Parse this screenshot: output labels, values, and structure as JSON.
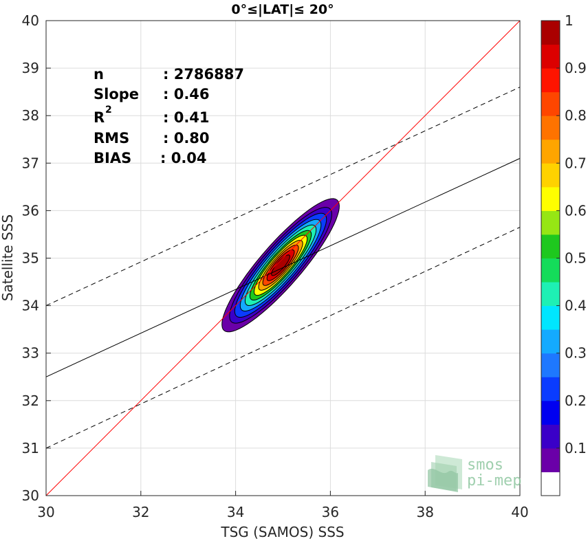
{
  "chart_data": {
    "type": "scatter",
    "subtype": "density-contour",
    "title": "0°≤|LAT|≤ 20°",
    "xlabel": "TSG (SAMOS) SSS",
    "ylabel": "Satellite SSS",
    "xlim": [
      30,
      40
    ],
    "ylim": [
      30,
      40
    ],
    "xticks": [
      "30",
      "32",
      "34",
      "36",
      "38",
      "40"
    ],
    "yticks": [
      "30",
      "31",
      "32",
      "33",
      "34",
      "35",
      "36",
      "37",
      "38",
      "39",
      "40"
    ],
    "grid": true,
    "stats": {
      "n": {
        "label": "n",
        "value": ": 2786887"
      },
      "slope": {
        "label": "Slope",
        "value": ": 0.46"
      },
      "r2": {
        "label": "R",
        "sup": "2",
        "value": ": 0.41"
      },
      "rms": {
        "label": "RMS",
        "value": ": 0.80"
      },
      "bias": {
        "label": "BIAS",
        "value": ": 0.04"
      }
    },
    "lines": {
      "identity": {
        "x": [
          30,
          40
        ],
        "y": [
          30,
          40
        ],
        "color": "#ff0000"
      },
      "regression": {
        "x": [
          30,
          40
        ],
        "y": [
          32.5,
          37.1
        ],
        "color": "#000000"
      },
      "upper_bound": {
        "x": [
          30,
          40
        ],
        "y": [
          34.0,
          38.6
        ],
        "style": "dashed"
      },
      "lower_bound": {
        "x": [
          30,
          40
        ],
        "y": [
          31.0,
          35.65
        ],
        "style": "dashed"
      }
    },
    "density": {
      "center": [
        34.95,
        34.85
      ],
      "major_axis_angle_deg": 49,
      "levels": [
        {
          "level": 0.05,
          "half_major": 1.82,
          "half_minor": 0.44
        },
        {
          "level": 0.1,
          "half_major": 1.58,
          "half_minor": 0.395
        },
        {
          "level": 0.2,
          "half_major": 1.42,
          "half_minor": 0.35
        },
        {
          "level": 0.3,
          "half_major": 1.25,
          "half_minor": 0.31
        },
        {
          "level": 0.4,
          "half_major": 1.1,
          "half_minor": 0.27
        },
        {
          "level": 0.5,
          "half_major": 0.95,
          "half_minor": 0.235
        },
        {
          "level": 0.6,
          "half_major": 0.82,
          "half_minor": 0.205
        },
        {
          "level": 0.7,
          "half_major": 0.68,
          "half_minor": 0.175
        },
        {
          "level": 0.8,
          "half_major": 0.55,
          "half_minor": 0.145
        },
        {
          "level": 0.9,
          "half_major": 0.42,
          "half_minor": 0.115
        }
      ]
    },
    "colorbar": {
      "ticks": [
        "0.1",
        "0.2",
        "0.3",
        "0.4",
        "0.5",
        "0.6",
        "0.7",
        "0.8",
        "0.9",
        "1"
      ],
      "tick_values": [
        0.1,
        0.2,
        0.3,
        0.4,
        0.5,
        0.6,
        0.7,
        0.8,
        0.9,
        1.0
      ],
      "bins": [
        {
          "from": 0.0,
          "to": 0.05,
          "color": "#ffffff"
        },
        {
          "from": 0.05,
          "to": 0.1,
          "color": "#6a00a8"
        },
        {
          "from": 0.1,
          "to": 0.15,
          "color": "#3a00c8"
        },
        {
          "from": 0.15,
          "to": 0.2,
          "color": "#0000f0"
        },
        {
          "from": 0.2,
          "to": 0.25,
          "color": "#0a3cff"
        },
        {
          "from": 0.25,
          "to": 0.3,
          "color": "#1e78ff"
        },
        {
          "from": 0.3,
          "to": 0.35,
          "color": "#14aaff"
        },
        {
          "from": 0.35,
          "to": 0.4,
          "color": "#00e6ff"
        },
        {
          "from": 0.4,
          "to": 0.45,
          "color": "#1ef0b4"
        },
        {
          "from": 0.45,
          "to": 0.5,
          "color": "#14dc5a"
        },
        {
          "from": 0.5,
          "to": 0.55,
          "color": "#1ec81e"
        },
        {
          "from": 0.55,
          "to": 0.6,
          "color": "#96e614"
        },
        {
          "from": 0.6,
          "to": 0.65,
          "color": "#ffff00"
        },
        {
          "from": 0.65,
          "to": 0.7,
          "color": "#ffd200"
        },
        {
          "from": 0.7,
          "to": 0.75,
          "color": "#ffa500"
        },
        {
          "from": 0.75,
          "to": 0.8,
          "color": "#ff7300"
        },
        {
          "from": 0.8,
          "to": 0.85,
          "color": "#ff4600"
        },
        {
          "from": 0.85,
          "to": 0.9,
          "color": "#ff1400"
        },
        {
          "from": 0.9,
          "to": 0.95,
          "color": "#dc0000"
        },
        {
          "from": 0.95,
          "to": 1.0,
          "color": "#aa0000"
        }
      ]
    }
  },
  "logo": {
    "line1": "smos",
    "line2": "pi-mep",
    "color": "#8fc7a0"
  }
}
